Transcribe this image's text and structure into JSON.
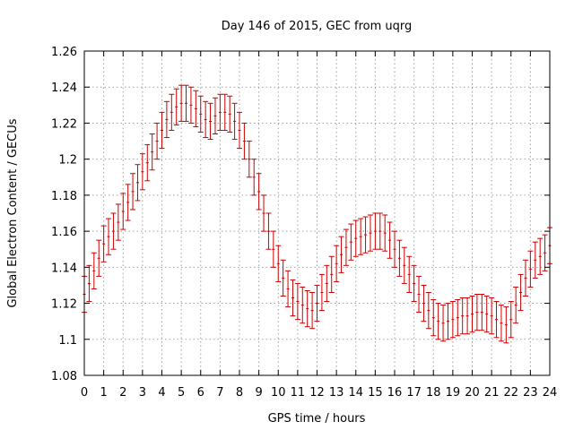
{
  "chart_data": {
    "type": "scatter",
    "title": "Day 146 of 2015, GEC from uqrg",
    "xlabel": "GPS time / hours",
    "ylabel": "Global Electron Content / GECUs",
    "xlim": [
      0,
      24
    ],
    "ylim": [
      1.08,
      1.26
    ],
    "x_ticks": [
      0,
      1,
      2,
      3,
      4,
      5,
      6,
      7,
      8,
      9,
      10,
      11,
      12,
      13,
      14,
      15,
      16,
      17,
      18,
      19,
      20,
      21,
      22,
      23,
      24
    ],
    "y_ticks": [
      1.08,
      1.1,
      1.12,
      1.14,
      1.16,
      1.18,
      1.2,
      1.22,
      1.24,
      1.26
    ],
    "y_tick_labels": [
      "1.08",
      "1.1",
      "1.12",
      "1.14",
      "1.16",
      "1.18",
      "1.2",
      "1.22",
      "1.24",
      "1.26"
    ],
    "grid": true,
    "series_color": "#cc0000",
    "error": 0.01,
    "x": [
      0,
      0.25,
      0.5,
      0.75,
      1,
      1.25,
      1.5,
      1.75,
      2,
      2.25,
      2.5,
      2.75,
      3,
      3.25,
      3.5,
      3.75,
      4,
      4.25,
      4.5,
      4.75,
      5,
      5.25,
      5.5,
      5.75,
      6,
      6.25,
      6.5,
      6.75,
      7,
      7.25,
      7.5,
      7.75,
      8,
      8.25,
      8.5,
      8.75,
      9,
      9.25,
      9.5,
      9.75,
      10,
      10.25,
      10.5,
      10.75,
      11,
      11.25,
      11.5,
      11.75,
      12,
      12.25,
      12.5,
      12.75,
      13,
      13.25,
      13.5,
      13.75,
      14,
      14.25,
      14.5,
      14.75,
      15,
      15.25,
      15.5,
      15.75,
      16,
      16.25,
      16.5,
      16.75,
      17,
      17.25,
      17.5,
      17.75,
      18,
      18.25,
      18.5,
      18.75,
      19,
      19.25,
      19.5,
      19.75,
      20,
      20.25,
      20.5,
      20.75,
      21,
      21.25,
      21.5,
      21.75,
      22,
      22.25,
      22.5,
      22.75,
      23,
      23.25,
      23.5,
      23.75,
      24
    ],
    "y": [
      1.125,
      1.131,
      1.138,
      1.145,
      1.153,
      1.157,
      1.16,
      1.165,
      1.171,
      1.176,
      1.182,
      1.187,
      1.193,
      1.198,
      1.204,
      1.21,
      1.216,
      1.222,
      1.226,
      1.229,
      1.231,
      1.231,
      1.23,
      1.228,
      1.225,
      1.222,
      1.221,
      1.224,
      1.226,
      1.226,
      1.225,
      1.221,
      1.216,
      1.21,
      1.2,
      1.19,
      1.182,
      1.17,
      1.16,
      1.15,
      1.142,
      1.134,
      1.128,
      1.123,
      1.121,
      1.119,
      1.117,
      1.116,
      1.12,
      1.126,
      1.131,
      1.136,
      1.142,
      1.147,
      1.151,
      1.154,
      1.156,
      1.157,
      1.158,
      1.159,
      1.16,
      1.16,
      1.159,
      1.155,
      1.15,
      1.145,
      1.141,
      1.136,
      1.131,
      1.125,
      1.12,
      1.116,
      1.112,
      1.11,
      1.109,
      1.11,
      1.111,
      1.112,
      1.113,
      1.113,
      1.114,
      1.115,
      1.115,
      1.114,
      1.113,
      1.111,
      1.109,
      1.108,
      1.111,
      1.119,
      1.126,
      1.134,
      1.139,
      1.144,
      1.146,
      1.148,
      1.152
    ]
  }
}
